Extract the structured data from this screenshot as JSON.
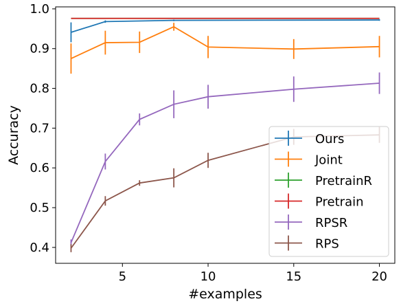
{
  "chart_data": {
    "type": "line",
    "title": "",
    "xlabel": "#examples",
    "ylabel": "Accuracy",
    "xlim": [
      1.1,
      20.9
    ],
    "ylim": [
      0.36,
      1.005
    ],
    "x_ticks": [
      5,
      10,
      15,
      20
    ],
    "y_ticks": [
      0.4,
      0.5,
      0.6,
      0.7,
      0.8,
      0.9,
      1.0
    ],
    "y_tick_labels": [
      "0.4",
      "0.5",
      "0.6",
      "0.7",
      "0.8",
      "0.9",
      "1.0"
    ],
    "grid": false,
    "legend_position": "center-right",
    "series": [
      {
        "name": "Ours",
        "color": "#1f77b4",
        "x": [
          2,
          4,
          8,
          20
        ],
        "y": [
          0.941,
          0.968,
          0.971,
          0.972
        ],
        "err": [
          0.025,
          0.003,
          0.002,
          0.002
        ]
      },
      {
        "name": "Joint",
        "color": "#ff7f0e",
        "x": [
          2,
          4,
          6,
          8,
          10,
          15,
          20
        ],
        "y": [
          0.875,
          0.915,
          0.916,
          0.955,
          0.904,
          0.899,
          0.905
        ],
        "err": [
          0.038,
          0.03,
          0.027,
          0.01,
          0.028,
          0.025,
          0.027
        ]
      },
      {
        "name": "PretrainR",
        "color": "#2ca02c",
        "x": [
          2,
          20
        ],
        "y": [
          0.976,
          0.976
        ],
        "err": [
          0,
          0
        ]
      },
      {
        "name": "Pretrain",
        "color": "#d62728",
        "x": [
          2,
          20
        ],
        "y": [
          0.976,
          0.976
        ],
        "err": [
          0,
          0
        ]
      },
      {
        "name": "RPSR",
        "color": "#9467bd",
        "x": [
          2,
          4,
          6,
          8,
          10,
          15,
          20
        ],
        "y": [
          0.412,
          0.616,
          0.722,
          0.76,
          0.779,
          0.798,
          0.813
        ],
        "err": [
          0.008,
          0.02,
          0.015,
          0.035,
          0.03,
          0.032,
          0.027
        ]
      },
      {
        "name": "RPS",
        "color": "#8c564b",
        "x": [
          2,
          4,
          6,
          8,
          10,
          15,
          20
        ],
        "y": [
          0.398,
          0.517,
          0.562,
          0.575,
          0.619,
          0.678,
          0.683
        ],
        "err": [
          0.01,
          0.012,
          0.007,
          0.024,
          0.019,
          0.02,
          0.02
        ]
      }
    ]
  }
}
